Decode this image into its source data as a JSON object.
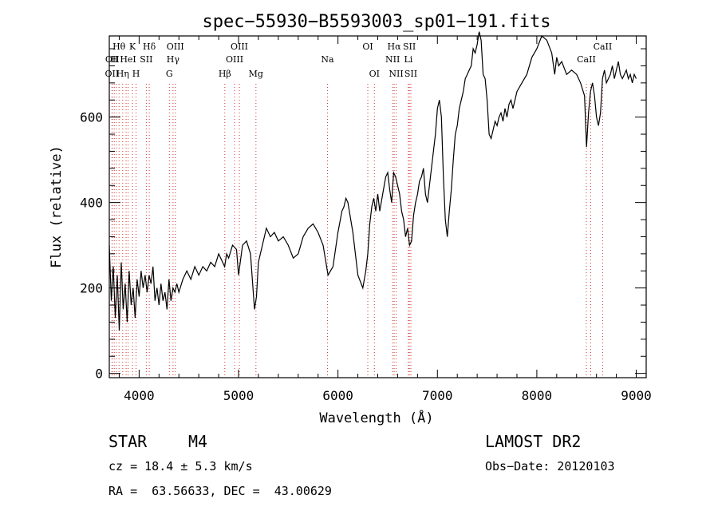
{
  "chart_data": {
    "type": "line",
    "title": "spec−55930−B5593003_sp01−191.fits",
    "xlabel": "Wavelength (Å)",
    "ylabel": "Flux (relative)",
    "xlim": [
      3700,
      9100
    ],
    "ylim": [
      -10,
      790
    ],
    "x_ticks": [
      4000,
      5000,
      6000,
      7000,
      8000,
      9000
    ],
    "y_ticks": [
      0,
      200,
      400,
      600
    ],
    "grid": false,
    "series_color": "#000000",
    "line_color": "#d03030",
    "spectrum": {
      "x": [
        3700,
        3720,
        3740,
        3760,
        3780,
        3800,
        3820,
        3840,
        3860,
        3880,
        3900,
        3920,
        3940,
        3960,
        3980,
        4000,
        4020,
        4040,
        4060,
        4080,
        4100,
        4120,
        4140,
        4160,
        4180,
        4200,
        4220,
        4240,
        4260,
        4280,
        4300,
        4320,
        4340,
        4360,
        4380,
        4400,
        4440,
        4480,
        4520,
        4560,
        4600,
        4640,
        4680,
        4720,
        4760,
        4800,
        4840,
        4860,
        4880,
        4900,
        4940,
        4980,
        5000,
        5040,
        5080,
        5120,
        5160,
        5180,
        5200,
        5240,
        5280,
        5320,
        5360,
        5400,
        5450,
        5500,
        5550,
        5600,
        5650,
        5700,
        5750,
        5800,
        5850,
        5900,
        5950,
        6000,
        6040,
        6060,
        6080,
        6100,
        6150,
        6200,
        6250,
        6280,
        6300,
        6320,
        6340,
        6360,
        6380,
        6400,
        6420,
        6450,
        6480,
        6500,
        6520,
        6540,
        6560,
        6580,
        6600,
        6620,
        6640,
        6660,
        6680,
        6700,
        6720,
        6740,
        6760,
        6780,
        6800,
        6820,
        6840,
        6860,
        6880,
        6900,
        6920,
        6940,
        6960,
        6980,
        7000,
        7020,
        7040,
        7060,
        7080,
        7100,
        7120,
        7140,
        7160,
        7180,
        7200,
        7220,
        7240,
        7260,
        7280,
        7300,
        7320,
        7340,
        7360,
        7380,
        7400,
        7420,
        7440,
        7460,
        7480,
        7500,
        7520,
        7540,
        7560,
        7580,
        7600,
        7620,
        7640,
        7660,
        7680,
        7700,
        7720,
        7740,
        7760,
        7780,
        7800,
        7850,
        7900,
        7950,
        8000,
        8050,
        8100,
        8150,
        8180,
        8200,
        8220,
        8250,
        8300,
        8350,
        8400,
        8440,
        8480,
        8500,
        8520,
        8540,
        8560,
        8580,
        8600,
        8620,
        8640,
        8660,
        8680,
        8700,
        8720,
        8740,
        8760,
        8780,
        8800,
        8820,
        8840,
        8860,
        8880,
        8900,
        8920,
        8940,
        8960,
        8980,
        9000
      ],
      "y": [
        300,
        170,
        250,
        130,
        230,
        100,
        260,
        150,
        210,
        120,
        240,
        160,
        200,
        130,
        220,
        180,
        240,
        200,
        230,
        190,
        230,
        210,
        250,
        170,
        200,
        160,
        210,
        170,
        190,
        150,
        220,
        170,
        200,
        190,
        210,
        190,
        220,
        240,
        220,
        250,
        230,
        250,
        240,
        260,
        250,
        280,
        260,
        250,
        280,
        270,
        300,
        290,
        230,
        300,
        310,
        280,
        150,
        180,
        260,
        300,
        340,
        320,
        330,
        310,
        320,
        300,
        270,
        280,
        320,
        340,
        350,
        330,
        300,
        230,
        250,
        330,
        380,
        390,
        410,
        400,
        330,
        230,
        200,
        240,
        280,
        350,
        390,
        410,
        380,
        420,
        380,
        420,
        460,
        470,
        430,
        400,
        470,
        460,
        440,
        420,
        380,
        360,
        320,
        340,
        300,
        310,
        370,
        400,
        420,
        450,
        460,
        480,
        420,
        400,
        440,
        480,
        520,
        560,
        620,
        640,
        600,
        460,
        360,
        320,
        380,
        430,
        500,
        560,
        580,
        620,
        640,
        660,
        690,
        700,
        710,
        720,
        760,
        750,
        770,
        800,
        780,
        700,
        690,
        640,
        560,
        550,
        570,
        590,
        580,
        600,
        610,
        590,
        620,
        600,
        630,
        640,
        620,
        640,
        660,
        680,
        700,
        740,
        760,
        790,
        780,
        750,
        700,
        740,
        720,
        730,
        700,
        710,
        700,
        680,
        650,
        530,
        610,
        660,
        680,
        650,
        600,
        580,
        610,
        690,
        710,
        680,
        690,
        700,
        720,
        690,
        710,
        730,
        700,
        690,
        700,
        710,
        690,
        700,
        680,
        700,
        690
      ]
    },
    "lines": [
      {
        "wl": 3727,
        "label": "OII",
        "row": 3
      },
      {
        "wl": 3730,
        "label": "OII",
        "row": 2
      },
      {
        "wl": 3750,
        "label": "",
        "row": 0
      },
      {
        "wl": 3771,
        "label": "",
        "row": 0
      },
      {
        "wl": 3798,
        "label": "",
        "row": 0
      },
      {
        "wl": 3835,
        "label": "Hη",
        "row": 3
      },
      {
        "wl": 3869,
        "label": "",
        "row": 0
      },
      {
        "wl": 3889,
        "label": "HeI",
        "row": 2
      },
      {
        "wl": 3934,
        "label": "K",
        "row": 1
      },
      {
        "wl": 3969,
        "label": "H",
        "row": 3
      },
      {
        "wl": 4072,
        "label": "SII",
        "row": 2
      },
      {
        "wl": 4102,
        "label": "Hδ",
        "row": 1
      },
      {
        "wl": 4304,
        "label": "G",
        "row": 3
      },
      {
        "wl": 4341,
        "label": "Hγ",
        "row": 2
      },
      {
        "wl": 4364,
        "label": "OIII",
        "row": 1
      },
      {
        "wl": 4862,
        "label": "Hβ",
        "row": 3
      },
      {
        "wl": 4960,
        "label": "OIII",
        "row": 2
      },
      {
        "wl": 5008,
        "label": "OIII",
        "row": 1
      },
      {
        "wl": 5175,
        "label": "Mg",
        "row": 3
      },
      {
        "wl": 5894,
        "label": "Na",
        "row": 2
      },
      {
        "wl": 6300,
        "label": "OI",
        "row": 1
      },
      {
        "wl": 6366,
        "label": "OI",
        "row": 3
      },
      {
        "wl": 6550,
        "label": "NII",
        "row": 2
      },
      {
        "wl": 6565,
        "label": "Hα",
        "row": 1
      },
      {
        "wl": 6585,
        "label": "NII",
        "row": 3
      },
      {
        "wl": 6708,
        "label": "Li",
        "row": 2
      },
      {
        "wl": 6718,
        "label": "SII",
        "row": 1
      },
      {
        "wl": 6733,
        "label": "SII",
        "row": 3
      },
      {
        "wl": 8498,
        "label": "CaII",
        "row": 2
      },
      {
        "wl": 8542,
        "label": "",
        "row": 0
      },
      {
        "wl": 8662,
        "label": "CaII",
        "row": 1
      }
    ],
    "annotations": [
      {
        "text": "Hθ",
        "wl": 3798,
        "row": 1
      },
      {
        "text": "H",
        "wl": 3750,
        "row": 2
      }
    ]
  },
  "info": {
    "object_class": "STAR",
    "subclass": "M4",
    "survey": "LAMOST DR2",
    "velocity": "cz = 18.4 ± 5.3 km/s",
    "obs_date": "Obs−Date: 20120103",
    "coords": "RA =  63.56633, DEC =  43.00629"
  }
}
